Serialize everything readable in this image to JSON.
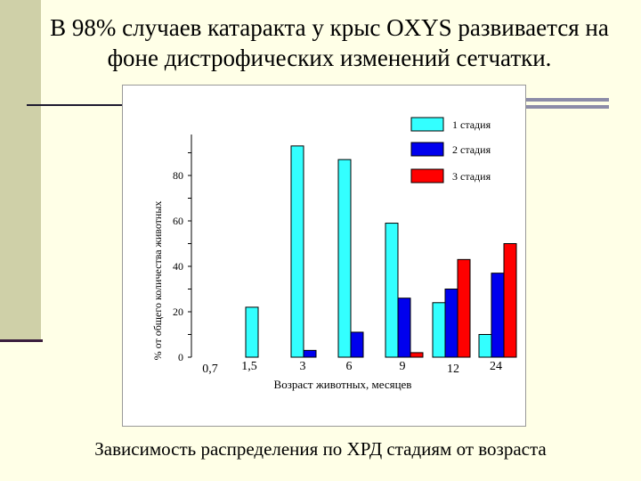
{
  "slide": {
    "title": "В 98% случаев катаракта у крыс OXYS развивается на фоне дистрофических изменений сетчатки.",
    "caption": "Зависимость распределения по ХРД стадиям от возраста"
  },
  "chart_data": {
    "type": "bar",
    "categories": [
      "0,7",
      "1,5",
      "3",
      "6",
      "9",
      "12",
      "24"
    ],
    "series": [
      {
        "name": "1 стадия",
        "color": "#33ffff",
        "values": [
          0,
          22,
          93,
          87,
          59,
          24,
          10
        ]
      },
      {
        "name": "2 стадия",
        "color": "#0000ee",
        "values": [
          0,
          0,
          3,
          11,
          26,
          30,
          37
        ]
      },
      {
        "name": "3 стадия",
        "color": "#ff0000",
        "values": [
          0,
          0,
          0,
          0,
          2,
          43,
          50
        ]
      }
    ],
    "xlabel": "Возраст животных, месяцев",
    "ylabel": "% от общего количества животных",
    "ylim": [
      0,
      100
    ],
    "yticks": [
      0,
      20,
      40,
      60,
      80
    ],
    "legend_position": "top-right",
    "grid": false
  }
}
